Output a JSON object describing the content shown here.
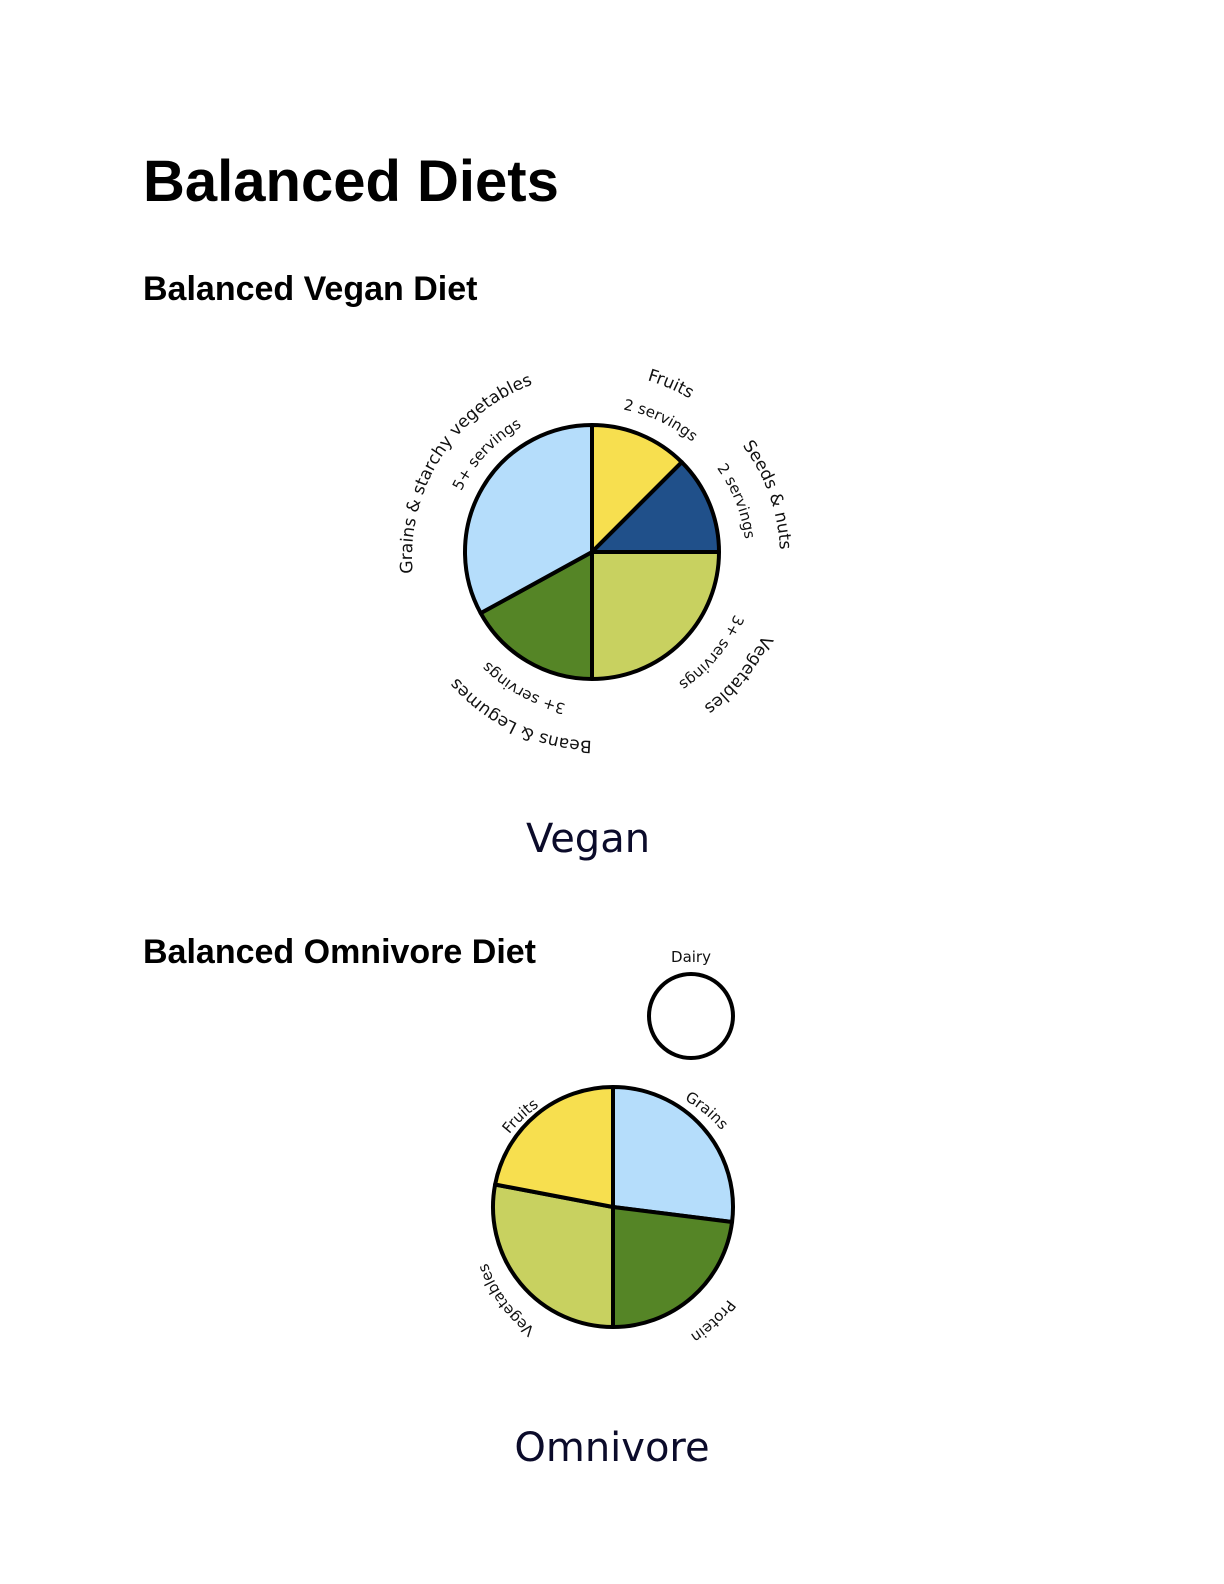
{
  "title": "Balanced Diets",
  "sections": [
    {
      "heading": "Balanced Vegan Diet"
    },
    {
      "heading": "Balanced Omnivore Diet"
    }
  ],
  "chart_data": [
    {
      "type": "pie",
      "title": "Vegan",
      "start": "top",
      "direction": "clockwise",
      "slices": [
        {
          "label": "Fruits",
          "servings": "2 servings",
          "percent": 12.5,
          "color": "#f7df4f"
        },
        {
          "label": "Seeds & nuts",
          "servings": "2 servings",
          "percent": 12.5,
          "color": "#20508a"
        },
        {
          "label": "Vegetables",
          "servings": "3+ servings",
          "percent": 25,
          "color": "#c8d160"
        },
        {
          "label": "Beans & Legumes",
          "servings": "3+ servings",
          "percent": 17,
          "color": "#558526"
        },
        {
          "label": "Grains & starchy vegetables",
          "servings": "5+ servings",
          "percent": 33,
          "color": "#b5ddfb"
        }
      ]
    },
    {
      "type": "pie",
      "title": "Omnivore",
      "start": "top",
      "direction": "clockwise",
      "slices": [
        {
          "label": "Grains",
          "percent": 27,
          "color": "#b5ddfb"
        },
        {
          "label": "Protein",
          "percent": 23,
          "color": "#558526"
        },
        {
          "label": "Vegetables",
          "percent": 28,
          "color": "#c8d160"
        },
        {
          "label": "Fruits",
          "percent": 22,
          "color": "#f7df4f"
        }
      ],
      "extra": {
        "label": "Dairy",
        "color": "#ffffff"
      }
    }
  ]
}
